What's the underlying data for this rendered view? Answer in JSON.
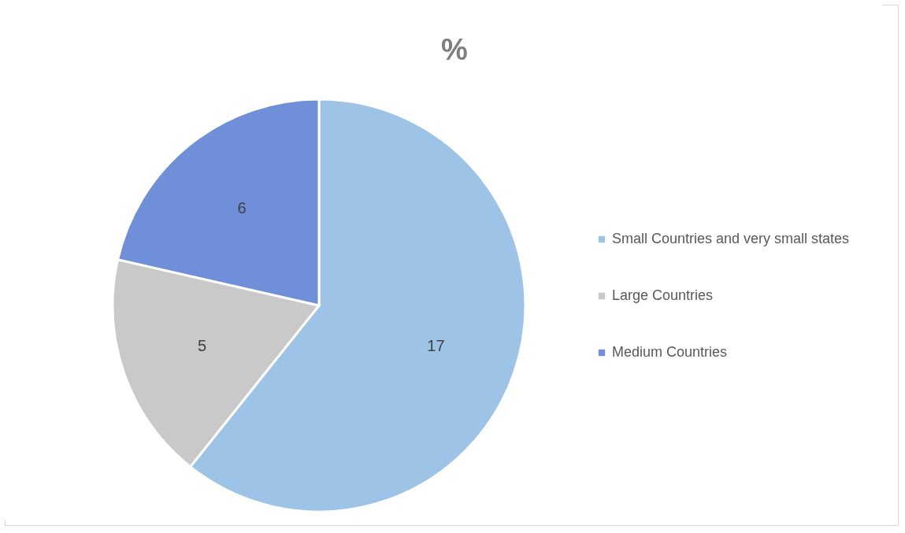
{
  "chart_data": {
    "type": "pie",
    "title": "%",
    "categories": [
      "Small Countries and very small states",
      "Large Countries",
      "Medium Countries"
    ],
    "values": [
      17,
      5,
      6
    ],
    "colors": [
      "#9dc3e6",
      "#c9c9c9",
      "#6f8fd8"
    ],
    "data_labels": true,
    "legend": "right"
  }
}
